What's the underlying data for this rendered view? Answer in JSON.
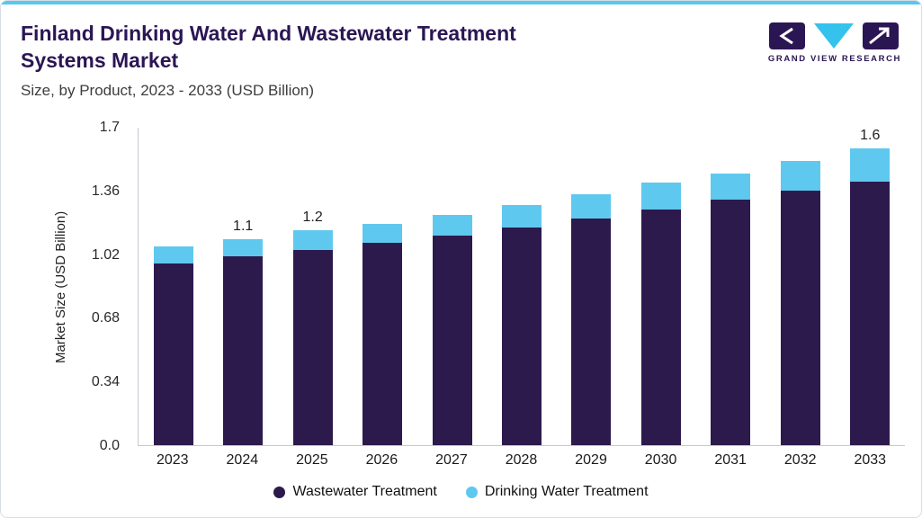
{
  "header": {
    "title": "Finland Drinking Water And Wastewater Treatment Systems Market",
    "subtitle": "Size, by Product, 2023 - 2033 (USD Billion)",
    "logo_text": "GRAND VIEW RESEARCH"
  },
  "colors": {
    "top_accent": "#58c7ee",
    "title_text": "#2b1654",
    "wastewater": "#2c1a4d",
    "drinking_water": "#5fc8ef",
    "axis_line": "#c3c9d1"
  },
  "chart_data": {
    "type": "bar",
    "stacked": true,
    "title": "Finland Drinking Water And Wastewater Treatment Systems Market",
    "subtitle": "Size, by Product, 2023 - 2033 (USD Billion)",
    "xlabel": "",
    "ylabel": "Market Size (USD Billion)",
    "ylim": [
      0,
      1.7
    ],
    "yticks": [
      0,
      0.34,
      0.68,
      1.02,
      1.36,
      1.7
    ],
    "ytick_labels": [
      "0.0",
      "0.34",
      "0.68",
      "1.02",
      "1.36",
      "1.7"
    ],
    "grid": false,
    "legend_position": "bottom",
    "categories": [
      "2023",
      "2024",
      "2025",
      "2026",
      "2027",
      "2028",
      "2029",
      "2030",
      "2031",
      "2032",
      "2033"
    ],
    "series": [
      {
        "name": "Wastewater Treatment",
        "color": "#2c1a4d",
        "values": [
          0.97,
          1.01,
          1.04,
          1.08,
          1.12,
          1.16,
          1.21,
          1.26,
          1.31,
          1.36,
          1.42
        ]
      },
      {
        "name": "Drinking Water Treatment",
        "color": "#5fc8ef",
        "values": [
          0.09,
          0.09,
          0.11,
          0.1,
          0.11,
          0.12,
          0.13,
          0.14,
          0.14,
          0.16,
          0.18
        ]
      }
    ],
    "totals": [
      1.06,
      1.1,
      1.15,
      1.18,
      1.23,
      1.28,
      1.34,
      1.4,
      1.45,
      1.52,
      1.6
    ],
    "bar_labels": [
      "",
      "1.1",
      "1.2",
      "",
      "",
      "",
      "",
      "",
      "",
      "",
      "1.6"
    ]
  }
}
